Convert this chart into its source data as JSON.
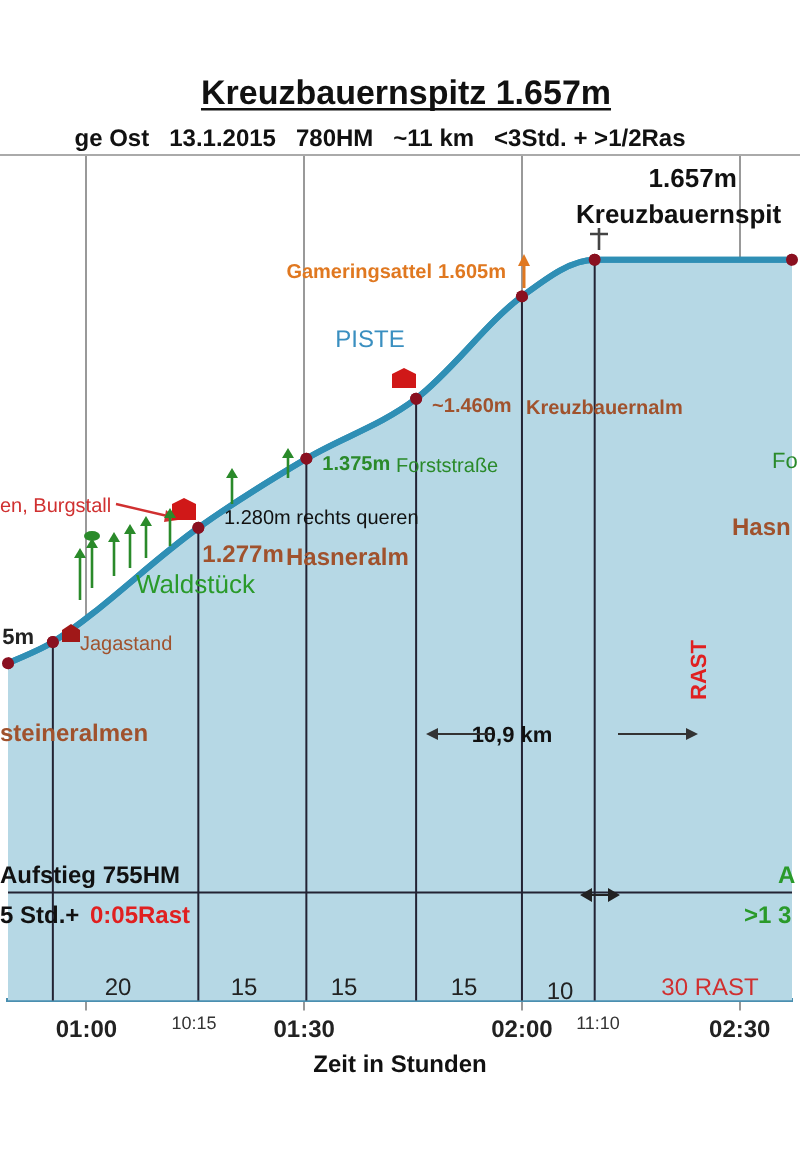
{
  "chart_data": {
    "type": "area",
    "title": "Kreuzbauernspitz 1.657m",
    "subtitle": "ge Ost   13.1.2015   780HM   ~11 km   <3Std. + >1/2Ras",
    "xlabel": "Zeit in Stunden",
    "series": [
      {
        "color": "#2f8fb5",
        "x": [
          0.82,
          0.923,
          1.257,
          1.505,
          1.757,
          2.0,
          2.167,
          2.62
        ],
        "values": [
          1.085,
          1.115,
          1.277,
          1.375,
          1.46,
          1.605,
          1.657,
          1.657
        ],
        "value_labels": [
          null,
          null,
          "1.277m",
          "1.375m",
          "~1.460m",
          "1.605m",
          "1.657m",
          null
        ]
      }
    ],
    "xlim": [
      0.82,
      2.62
    ],
    "xticks": [
      {
        "value": 1,
        "label": "01:00"
      },
      {
        "value": 1.5,
        "label": "01:30"
      },
      {
        "value": 2,
        "label": "02:00"
      },
      {
        "value": 2.5,
        "label": "02:30"
      }
    ],
    "ylim": [
      0.607,
      1.804
    ],
    "tick_labels": "x",
    "grid": "x",
    "marker": "circle",
    "legend": false,
    "ref_lines": [
      {
        "axis": "x",
        "value": 0.923
      },
      {
        "axis": "x",
        "value": 1.257
      },
      {
        "axis": "x",
        "value": 1.505
      },
      {
        "axis": "x",
        "value": 1.757
      },
      {
        "axis": "x",
        "value": 2.0
      },
      {
        "axis": "x",
        "value": 2.167
      },
      {
        "axis": "y",
        "value": 0.76
      }
    ],
    "annotations": [
      "5m",
      "Gameringsattel",
      "Hasneralm",
      "Forststraße",
      "Kreuzbauernalm",
      "Kreuzbauernspit",
      "Jagastand",
      "Waldstück",
      "1.280m rechts queren",
      "en, Burgstall",
      "PISTE",
      "steineralmen",
      "Fo",
      "Hasn",
      "RAST",
      "10,9 km",
      "Aufstieg 755HM",
      "5 Std.+",
      "0:05Rast",
      "A",
      ">1 3",
      "20",
      "15",
      "15",
      "15",
      "10",
      "30 RAST",
      "10:15",
      "11:10"
    ]
  }
}
